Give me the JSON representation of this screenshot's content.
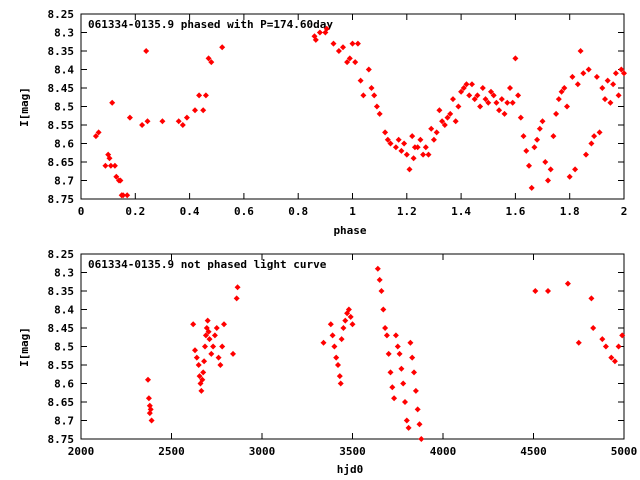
{
  "chart_data": [
    {
      "type": "scatter",
      "title": "061334-0135.9 phased with P=174.60day",
      "xlabel": "phase",
      "ylabel": "I[mag]",
      "xlim": [
        0,
        2
      ],
      "ylim": [
        8.25,
        8.75
      ],
      "y_inverted": true,
      "grid": false,
      "color": "#ff0000",
      "x_ticks": [
        "0",
        "0.2",
        "0.4",
        "0.6",
        "0.8",
        "1",
        "1.2",
        "1.4",
        "1.6",
        "1.8",
        "2"
      ],
      "y_ticks": [
        "8.25",
        "8.3",
        "8.35",
        "8.4",
        "8.45",
        "8.5",
        "8.55",
        "8.6",
        "8.65",
        "8.7",
        "8.75"
      ],
      "series": [
        {
          "points": [
            [
              0.055,
              8.58
            ],
            [
              0.065,
              8.57
            ],
            [
              0.09,
              8.66
            ],
            [
              0.1,
              8.63
            ],
            [
              0.105,
              8.64
            ],
            [
              0.11,
              8.66
            ],
            [
              0.115,
              8.49
            ],
            [
              0.125,
              8.66
            ],
            [
              0.13,
              8.69
            ],
            [
              0.14,
              8.7
            ],
            [
              0.145,
              8.7
            ],
            [
              0.15,
              8.74
            ],
            [
              0.155,
              8.74
            ],
            [
              0.17,
              8.74
            ],
            [
              0.18,
              8.53
            ],
            [
              0.225,
              8.55
            ],
            [
              0.24,
              8.35
            ],
            [
              0.245,
              8.54
            ],
            [
              0.3,
              8.54
            ],
            [
              0.36,
              8.54
            ],
            [
              0.375,
              8.55
            ],
            [
              0.39,
              8.53
            ],
            [
              0.42,
              8.51
            ],
            [
              0.435,
              8.47
            ],
            [
              0.45,
              8.51
            ],
            [
              0.46,
              8.47
            ],
            [
              0.47,
              8.37
            ],
            [
              0.48,
              8.38
            ],
            [
              0.52,
              8.34
            ],
            [
              0.86,
              8.31
            ],
            [
              0.865,
              8.32
            ],
            [
              0.88,
              8.3
            ],
            [
              0.9,
              8.3
            ],
            [
              0.905,
              8.29
            ],
            [
              0.93,
              8.33
            ],
            [
              0.95,
              8.35
            ],
            [
              0.965,
              8.34
            ],
            [
              0.98,
              8.38
            ],
            [
              0.99,
              8.37
            ],
            [
              1.0,
              8.33
            ],
            [
              1.01,
              8.38
            ],
            [
              1.02,
              8.33
            ],
            [
              1.03,
              8.43
            ],
            [
              1.04,
              8.47
            ],
            [
              1.06,
              8.4
            ],
            [
              1.07,
              8.45
            ],
            [
              1.08,
              8.47
            ],
            [
              1.09,
              8.5
            ],
            [
              1.1,
              8.52
            ],
            [
              1.12,
              8.57
            ],
            [
              1.13,
              8.59
            ],
            [
              1.14,
              8.6
            ],
            [
              1.16,
              8.61
            ],
            [
              1.17,
              8.59
            ],
            [
              1.18,
              8.62
            ],
            [
              1.19,
              8.6
            ],
            [
              1.2,
              8.63
            ],
            [
              1.21,
              8.67
            ],
            [
              1.22,
              8.58
            ],
            [
              1.225,
              8.64
            ],
            [
              1.23,
              8.61
            ],
            [
              1.24,
              8.61
            ],
            [
              1.25,
              8.59
            ],
            [
              1.26,
              8.63
            ],
            [
              1.27,
              8.61
            ],
            [
              1.28,
              8.63
            ],
            [
              1.29,
              8.56
            ],
            [
              1.3,
              8.59
            ],
            [
              1.31,
              8.57
            ],
            [
              1.32,
              8.51
            ],
            [
              1.33,
              8.54
            ],
            [
              1.34,
              8.55
            ],
            [
              1.35,
              8.53
            ],
            [
              1.36,
              8.52
            ],
            [
              1.37,
              8.48
            ],
            [
              1.38,
              8.54
            ],
            [
              1.39,
              8.5
            ],
            [
              1.4,
              8.46
            ],
            [
              1.41,
              8.45
            ],
            [
              1.42,
              8.44
            ],
            [
              1.43,
              8.47
            ],
            [
              1.44,
              8.44
            ],
            [
              1.45,
              8.48
            ],
            [
              1.46,
              8.47
            ],
            [
              1.47,
              8.5
            ],
            [
              1.48,
              8.45
            ],
            [
              1.49,
              8.48
            ],
            [
              1.5,
              8.49
            ],
            [
              1.51,
              8.46
            ],
            [
              1.52,
              8.47
            ],
            [
              1.53,
              8.49
            ],
            [
              1.54,
              8.51
            ],
            [
              1.55,
              8.48
            ],
            [
              1.56,
              8.52
            ],
            [
              1.57,
              8.49
            ],
            [
              1.58,
              8.45
            ],
            [
              1.59,
              8.49
            ],
            [
              1.6,
              8.37
            ],
            [
              1.61,
              8.47
            ],
            [
              1.62,
              8.53
            ],
            [
              1.63,
              8.58
            ],
            [
              1.64,
              8.62
            ],
            [
              1.65,
              8.66
            ],
            [
              1.66,
              8.72
            ],
            [
              1.67,
              8.61
            ],
            [
              1.68,
              8.59
            ],
            [
              1.69,
              8.56
            ],
            [
              1.7,
              8.54
            ],
            [
              1.71,
              8.65
            ],
            [
              1.72,
              8.7
            ],
            [
              1.73,
              8.67
            ],
            [
              1.74,
              8.58
            ],
            [
              1.75,
              8.52
            ],
            [
              1.76,
              8.48
            ],
            [
              1.77,
              8.46
            ],
            [
              1.78,
              8.45
            ],
            [
              1.79,
              8.5
            ],
            [
              1.8,
              8.69
            ],
            [
              1.81,
              8.42
            ],
            [
              1.82,
              8.67
            ],
            [
              1.83,
              8.44
            ],
            [
              1.84,
              8.35
            ],
            [
              1.85,
              8.41
            ],
            [
              1.86,
              8.63
            ],
            [
              1.87,
              8.4
            ],
            [
              1.88,
              8.6
            ],
            [
              1.89,
              8.58
            ],
            [
              1.9,
              8.42
            ],
            [
              1.91,
              8.57
            ],
            [
              1.92,
              8.45
            ],
            [
              1.93,
              8.48
            ],
            [
              1.94,
              8.43
            ],
            [
              1.95,
              8.49
            ],
            [
              1.96,
              8.44
            ],
            [
              1.97,
              8.41
            ],
            [
              1.98,
              8.47
            ],
            [
              1.99,
              8.4
            ],
            [
              2.0,
              8.41
            ]
          ]
        }
      ]
    },
    {
      "type": "scatter",
      "title": "061334-0135.9 not phased light curve",
      "xlabel": "hjd0",
      "ylabel": "I[mag]",
      "xlim": [
        2000,
        5000
      ],
      "ylim": [
        8.25,
        8.75
      ],
      "y_inverted": true,
      "grid": false,
      "color": "#ff0000",
      "x_ticks": [
        "2000",
        "2500",
        "3000",
        "3500",
        "4000",
        "4500",
        "5000"
      ],
      "y_ticks": [
        "8.25",
        "8.3",
        "8.35",
        "8.4",
        "8.45",
        "8.5",
        "8.55",
        "8.6",
        "8.65",
        "8.7",
        "8.75"
      ],
      "series": [
        {
          "points": [
            [
              2370,
              8.59
            ],
            [
              2375,
              8.64
            ],
            [
              2380,
              8.66
            ],
            [
              2385,
              8.67
            ],
            [
              2390,
              8.7
            ],
            [
              2380,
              8.68
            ],
            [
              2620,
              8.44
            ],
            [
              2630,
              8.51
            ],
            [
              2640,
              8.53
            ],
            [
              2650,
              8.55
            ],
            [
              2655,
              8.58
            ],
            [
              2660,
              8.6
            ],
            [
              2665,
              8.62
            ],
            [
              2670,
              8.59
            ],
            [
              2675,
              8.57
            ],
            [
              2680,
              8.54
            ],
            [
              2685,
              8.5
            ],
            [
              2690,
              8.47
            ],
            [
              2695,
              8.45
            ],
            [
              2700,
              8.43
            ],
            [
              2705,
              8.46
            ],
            [
              2710,
              8.48
            ],
            [
              2720,
              8.52
            ],
            [
              2730,
              8.5
            ],
            [
              2740,
              8.47
            ],
            [
              2750,
              8.45
            ],
            [
              2760,
              8.53
            ],
            [
              2770,
              8.55
            ],
            [
              2780,
              8.5
            ],
            [
              2790,
              8.44
            ],
            [
              2840,
              8.52
            ],
            [
              2860,
              8.37
            ],
            [
              2865,
              8.34
            ],
            [
              3340,
              8.49
            ],
            [
              3380,
              8.44
            ],
            [
              3390,
              8.47
            ],
            [
              3400,
              8.5
            ],
            [
              3410,
              8.53
            ],
            [
              3420,
              8.55
            ],
            [
              3430,
              8.58
            ],
            [
              3435,
              8.6
            ],
            [
              3440,
              8.48
            ],
            [
              3450,
              8.45
            ],
            [
              3460,
              8.43
            ],
            [
              3470,
              8.41
            ],
            [
              3480,
              8.4
            ],
            [
              3490,
              8.42
            ],
            [
              3500,
              8.44
            ],
            [
              3640,
              8.29
            ],
            [
              3650,
              8.32
            ],
            [
              3660,
              8.35
            ],
            [
              3670,
              8.4
            ],
            [
              3680,
              8.45
            ],
            [
              3690,
              8.47
            ],
            [
              3700,
              8.52
            ],
            [
              3710,
              8.57
            ],
            [
              3720,
              8.61
            ],
            [
              3730,
              8.64
            ],
            [
              3740,
              8.47
            ],
            [
              3750,
              8.5
            ],
            [
              3760,
              8.52
            ],
            [
              3770,
              8.56
            ],
            [
              3780,
              8.6
            ],
            [
              3790,
              8.65
            ],
            [
              3800,
              8.7
            ],
            [
              3810,
              8.72
            ],
            [
              3820,
              8.49
            ],
            [
              3830,
              8.53
            ],
            [
              3840,
              8.57
            ],
            [
              3850,
              8.62
            ],
            [
              3860,
              8.67
            ],
            [
              3870,
              8.71
            ],
            [
              3880,
              8.75
            ],
            [
              4510,
              8.35
            ],
            [
              4580,
              8.35
            ],
            [
              4690,
              8.33
            ],
            [
              4750,
              8.49
            ],
            [
              4820,
              8.37
            ],
            [
              4830,
              8.45
            ],
            [
              4880,
              8.48
            ],
            [
              4900,
              8.5
            ],
            [
              4930,
              8.53
            ],
            [
              4950,
              8.54
            ],
            [
              4970,
              8.5
            ],
            [
              4990,
              8.47
            ]
          ]
        }
      ]
    }
  ]
}
